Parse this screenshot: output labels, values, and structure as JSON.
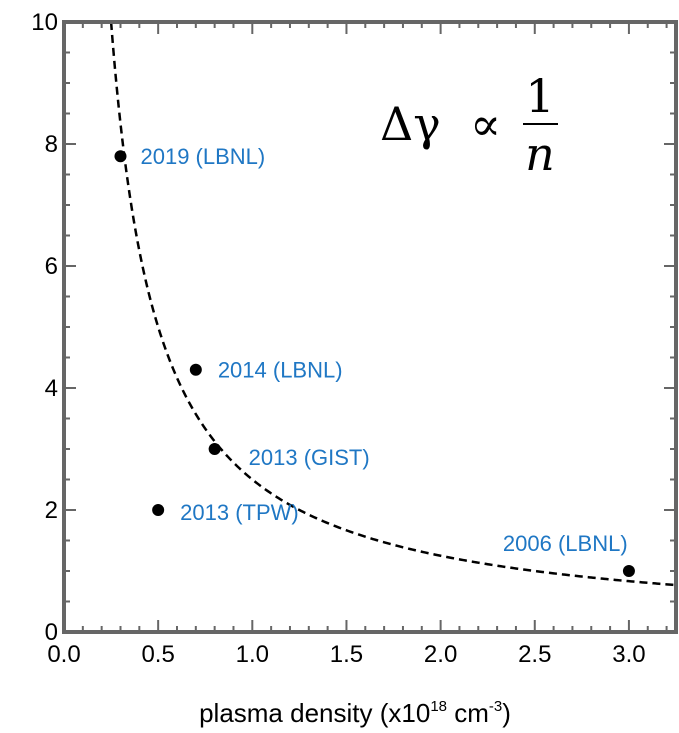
{
  "chart_data": {
    "type": "scatter",
    "xlabel": {
      "main": "plasma density (x10",
      "sup1": "18",
      "mid": " cm",
      "sup2": "-3",
      "end": ")"
    },
    "ylabel": "",
    "xlim": [
      0.0,
      3.25
    ],
    "ylim": [
      0,
      10
    ],
    "x_ticks": [
      0.0,
      0.5,
      1.0,
      1.5,
      2.0,
      2.5,
      3.0
    ],
    "x_tick_labels": [
      "0.0",
      "0.5",
      "1.0",
      "1.5",
      "2.0",
      "2.5",
      "3.0"
    ],
    "y_ticks": [
      0,
      2,
      4,
      6,
      8,
      10
    ],
    "y_tick_labels": [
      "0",
      "2",
      "4",
      "6",
      "8",
      "10"
    ],
    "grid": false,
    "points": [
      {
        "x": 0.3,
        "y": 7.8,
        "label": "2019 (LBNL)"
      },
      {
        "x": 0.7,
        "y": 4.3,
        "label": "2014 (LBNL)"
      },
      {
        "x": 0.8,
        "y": 3.0,
        "label": "2013 (GIST)"
      },
      {
        "x": 0.5,
        "y": 2.0,
        "label": "2013 (TPW)"
      },
      {
        "x": 3.0,
        "y": 1.0,
        "label": "2006 (LBNL)"
      }
    ],
    "fit_curve": {
      "form": "y = k / x",
      "k": 2.5,
      "style": "dashed"
    },
    "annotation": {
      "lhs": "Δγ",
      "rel": "∝",
      "num": "1",
      "den": "n"
    },
    "colors": {
      "points": "#000000",
      "point_labels": "#1f77c4",
      "frame": "#666666",
      "curve": "#000000"
    }
  }
}
